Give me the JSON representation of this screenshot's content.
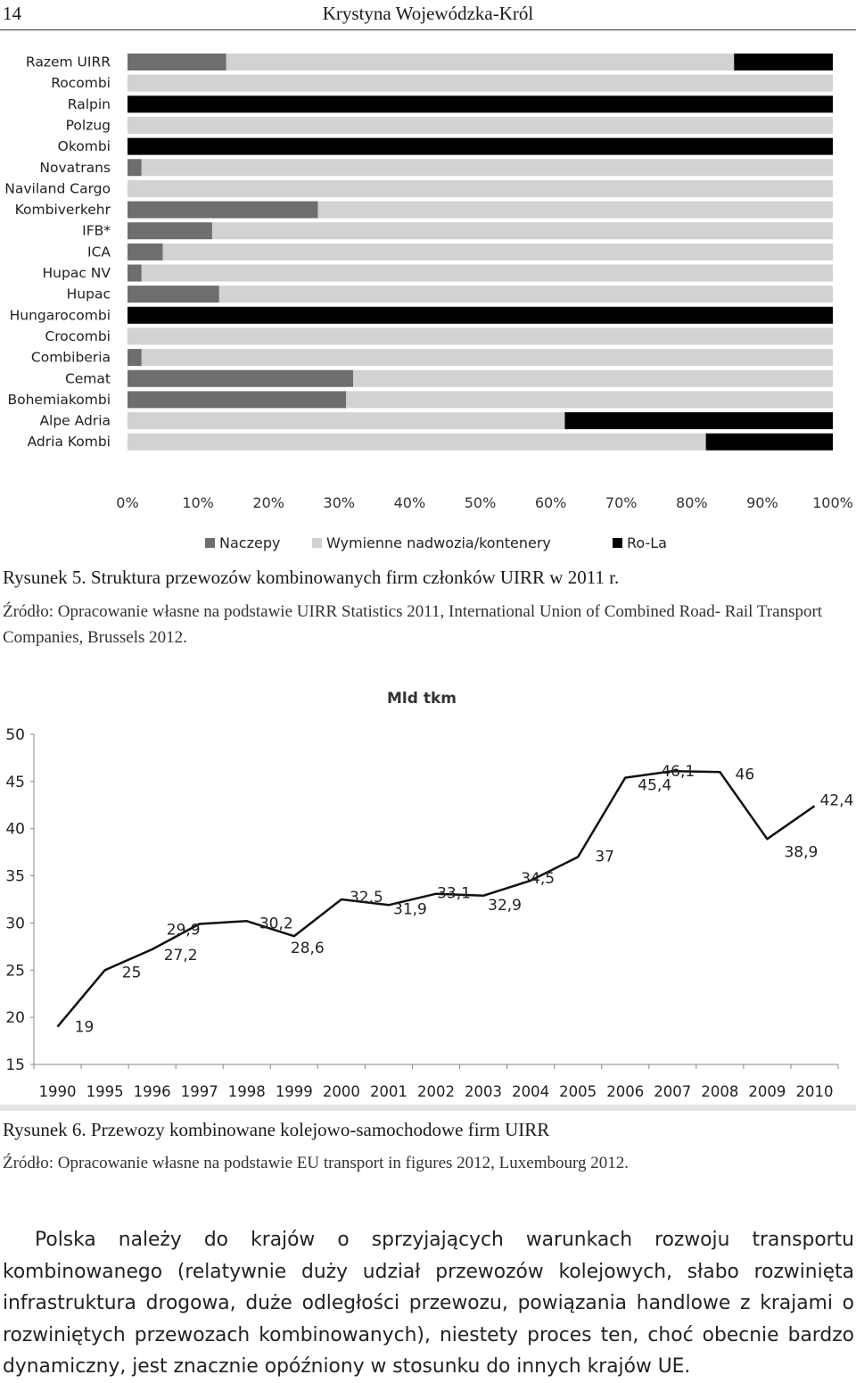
{
  "header": {
    "page_number": "14",
    "author": "Krystyna Wojewódzka-Król"
  },
  "figure5": {
    "caption": "Rysunek 5. Struktura przewozów kombinowanych firm członków UIRR w 2011 r.",
    "source": "Źródło: Opracowanie własne na podstawie UIRR Statistics 2011, International Union of Combined Road- Rail Transport Companies, Brussels 2012."
  },
  "figure6": {
    "caption": "Rysunek 6. Przewozy kombinowane kolejowo-samochodowe firm UIRR",
    "source": "Źródło: Opracowanie własne na podstawie EU transport in figures 2012, Luxembourg 2012."
  },
  "paragraph": "Polska należy do krajów o sprzyjających warunkach rozwoju transportu kombinowanego (relatywnie duży udział przewozów kolejowych, słabo rozwinięta infrastruktura drogowa, duże odległości przewozu, powiązania handlowe z krajami o rozwiniętych przewozach kombinowanych), niestety proces ten, choć obecnie bardzo dynamiczny, jest znacznie opóźniony w stosunku do innych krajów UE.",
  "colors": {
    "naczepy": "#6e6e6e",
    "wymienne": "#d2d2d2",
    "rola": "#000000",
    "line": "#111111"
  },
  "chart_data": [
    {
      "type": "bar",
      "stacked": true,
      "orientation": "horizontal",
      "title": "",
      "categories": [
        "Razem UIRR",
        "Rocombi",
        "Ralpin",
        "Polzug",
        "Okombi",
        "Novatrans",
        "Naviland Cargo",
        "Kombiverkehr",
        "IFB*",
        "ICA",
        "Hupac NV",
        "Hupac",
        "Hungarocombi",
        "Crocombi",
        "Combiberia",
        "Cemat",
        "Bohemiakombi",
        "Alpe Adria",
        "Adria Kombi"
      ],
      "series": [
        {
          "name": "Naczepy",
          "values": [
            14,
            0,
            0,
            0,
            0,
            2,
            0,
            27,
            12,
            5,
            2,
            13,
            0,
            0,
            2,
            32,
            31,
            0,
            0
          ]
        },
        {
          "name": "Wymienne nadwozia/kontenery",
          "values": [
            72,
            100,
            0,
            100,
            0,
            98,
            100,
            73,
            88,
            95,
            98,
            87,
            0,
            100,
            98,
            68,
            69,
            62,
            82
          ]
        },
        {
          "name": "Ro-La",
          "values": [
            14,
            0,
            100,
            0,
            100,
            0,
            0,
            0,
            0,
            0,
            0,
            0,
            100,
            0,
            0,
            0,
            0,
            38,
            18
          ]
        }
      ],
      "xticks": [
        "0%",
        "10%",
        "20%",
        "30%",
        "40%",
        "50%",
        "60%",
        "70%",
        "80%",
        "90%",
        "100%"
      ],
      "xlim": [
        0,
        100
      ],
      "legend_position": "bottom",
      "grid": false
    },
    {
      "type": "line",
      "title": "Mld tkm",
      "categories": [
        "1990",
        "1995",
        "1996",
        "1997",
        "1998",
        "1999",
        "2000",
        "2001",
        "2002",
        "2003",
        "2004",
        "2005",
        "2006",
        "2007",
        "2008",
        "2009",
        "2010"
      ],
      "values": [
        19,
        25,
        27.2,
        29.9,
        30.2,
        28.6,
        32.5,
        31.9,
        33.1,
        32.9,
        34.5,
        37,
        45.4,
        46.1,
        46,
        38.9,
        42.4
      ],
      "labels": [
        "19",
        "25",
        "27,2",
        "29,9",
        "30,2",
        "28,6",
        "32,5",
        "31,9",
        "33,1",
        "32,9",
        "34,5",
        "37",
        "45,4",
        "46,1",
        "46",
        "38,9",
        "42,4"
      ],
      "yticks": [
        "15",
        "20",
        "25",
        "30",
        "35",
        "40",
        "45",
        "50"
      ],
      "ylim": [
        15,
        50
      ],
      "grid": false
    }
  ]
}
